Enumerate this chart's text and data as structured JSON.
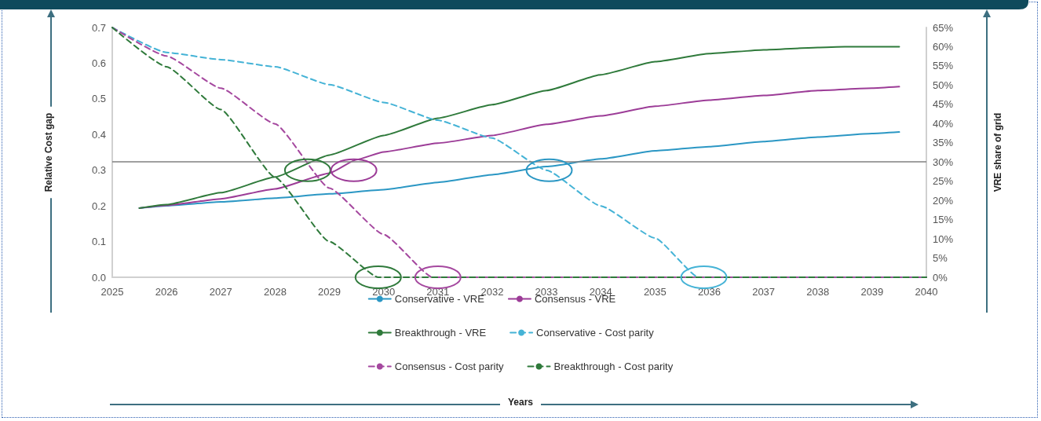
{
  "chart_data": {
    "type": "line",
    "annotations": [
      "Years"
    ],
    "ylabel": "Relative Cost gap",
    "y2label": "VRE share of grid",
    "xlim": [
      2025,
      2040
    ],
    "xticks": [
      2025,
      2026,
      2027,
      2028,
      2029,
      2030,
      2031,
      2032,
      2033,
      2034,
      2035,
      2036,
      2037,
      2038,
      2039,
      2040
    ],
    "ylim": [
      0,
      0.7
    ],
    "yticks": [
      {
        "value": 0,
        "label": "0.0"
      },
      0.1,
      0.2,
      0.3,
      0.4,
      0.5,
      0.6,
      0.7
    ],
    "y2lim": [
      0,
      65
    ],
    "y2ticks": [
      {
        "value": 0,
        "label": "0%"
      },
      {
        "value": 5,
        "label": "5%"
      },
      {
        "value": 10,
        "label": "10%"
      },
      {
        "value": 15,
        "label": "15%"
      },
      {
        "value": 20,
        "label": "20%"
      },
      {
        "value": 25,
        "label": "25%"
      },
      {
        "value": 30,
        "label": "30%"
      },
      {
        "value": 35,
        "label": "35%"
      },
      {
        "value": 40,
        "label": "40%"
      },
      {
        "value": 45,
        "label": "45%"
      },
      {
        "value": 50,
        "label": "50%"
      },
      {
        "value": 55,
        "label": "55%"
      },
      {
        "value": 60,
        "label": "60%"
      },
      {
        "value": 65,
        "label": "65%"
      }
    ],
    "grid": false,
    "legend": "bottom",
    "marker": "none",
    "ref_lines": [
      {
        "axis": "y2",
        "value": 30,
        "color": "#808080"
      }
    ],
    "series": [
      {
        "name": "Conservative - VRE",
        "color": "#2b97c4",
        "axis": "y2",
        "line_style": "solid",
        "x": [
          2025.5,
          2026,
          2027,
          2028,
          2029,
          2030,
          2031,
          2032,
          2033,
          2034,
          2035,
          2036,
          2037,
          2038,
          2039,
          2039.5
        ],
        "values": [
          18,
          18.6,
          19.6,
          20.6,
          21.7,
          22.8,
          24.7,
          26.7,
          28.8,
          30.8,
          32.9,
          34,
          35.3,
          36.5,
          37.4,
          37.8
        ]
      },
      {
        "name": "Consensus - VRE",
        "color": "#9c3c97",
        "axis": "y2",
        "line_style": "solid",
        "x": [
          2025.5,
          2026,
          2027,
          2028,
          2029,
          2029.5,
          2030,
          2031,
          2032,
          2033,
          2034,
          2035,
          2036,
          2037,
          2038,
          2039,
          2039.5
        ],
        "values": [
          18,
          18.7,
          20.4,
          23,
          27.1,
          30.6,
          32.6,
          34.9,
          36.9,
          39.8,
          42,
          44.5,
          46.1,
          47.3,
          48.6,
          49.2,
          49.6
        ]
      },
      {
        "name": "Breakthrough - VRE",
        "color": "#2f7a3b",
        "axis": "y2",
        "line_style": "solid",
        "x": [
          2025.5,
          2026,
          2027,
          2028,
          2029,
          2030,
          2031,
          2032,
          2033,
          2034,
          2035,
          2036,
          2037,
          2038,
          2038.5,
          2039.5
        ],
        "values": [
          18,
          18.9,
          22,
          26.1,
          31.8,
          36.9,
          41.4,
          44.9,
          48.6,
          52.7,
          56.1,
          58.2,
          59.2,
          59.8,
          60,
          60
        ]
      },
      {
        "name": "Conservative - Cost parity",
        "color": "#45b3d6",
        "axis": "y",
        "line_style": "dashed",
        "x": [
          2025,
          2026,
          2027,
          2028,
          2029,
          2030,
          2031,
          2032,
          2033,
          2034,
          2035,
          2035.8,
          2040
        ],
        "values": [
          0.7,
          0.63,
          0.61,
          0.59,
          0.54,
          0.49,
          0.44,
          0.39,
          0.3,
          0.2,
          0.11,
          0,
          0
        ]
      },
      {
        "name": "Consensus - Cost parity",
        "color": "#a5489f",
        "axis": "y",
        "line_style": "dashed",
        "x": [
          2025,
          2026,
          2027,
          2028,
          2029,
          2030,
          2030.9,
          2040
        ],
        "values": [
          0.7,
          0.62,
          0.53,
          0.43,
          0.25,
          0.12,
          0,
          0
        ]
      },
      {
        "name": "Breakthrough - Cost parity",
        "color": "#2f7a3b",
        "axis": "y",
        "line_style": "dashed",
        "x": [
          2025,
          2026,
          2027,
          2028,
          2029,
          2029.9,
          2040
        ],
        "values": [
          0.7,
          0.59,
          0.47,
          0.28,
          0.1,
          0,
          0
        ]
      }
    ]
  }
}
